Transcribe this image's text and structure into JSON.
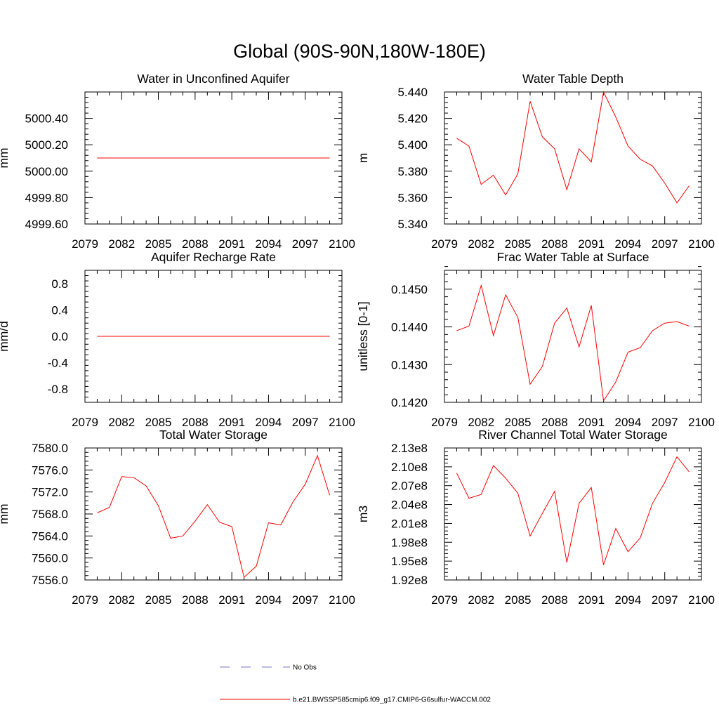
{
  "title": "Global (90S-90N,180W-180E)",
  "colors": {
    "series": "#ff0000",
    "obs": "#7777cc",
    "axes": "#000000"
  },
  "legend": {
    "obs_label": "No Obs",
    "model_label": "b.e21.BWSSP585cmip6.f09_g17.CMIP6-G6sulfur-WACCM.002"
  },
  "chart_data": [
    {
      "type": "line",
      "title": "Water in Unconfined Aquifer",
      "xlabel": "",
      "ylabel": "mm",
      "xlim": [
        2079,
        2100
      ],
      "ylim": [
        4999.6,
        5000.6
      ],
      "xticks": [
        "2079",
        "2082",
        "2085",
        "2088",
        "2091",
        "2094",
        "2097",
        "2100"
      ],
      "yticks": [
        "4999.60",
        "4999.80",
        "5000.00",
        "5000.20",
        "5000.40"
      ],
      "x": [
        2080,
        2081,
        2082,
        2083,
        2084,
        2085,
        2086,
        2087,
        2088,
        2089,
        2090,
        2091,
        2092,
        2093,
        2094,
        2095,
        2096,
        2097,
        2098,
        2099
      ],
      "series": [
        {
          "values": [
            5000.1,
            5000.1,
            5000.1,
            5000.1,
            5000.1,
            5000.1,
            5000.1,
            5000.1,
            5000.1,
            5000.1,
            5000.1,
            5000.1,
            5000.1,
            5000.1,
            5000.1,
            5000.1,
            5000.1,
            5000.1,
            5000.1,
            5000.1
          ]
        }
      ]
    },
    {
      "type": "line",
      "title": "Water Table Depth",
      "xlabel": "",
      "ylabel": "m",
      "xlim": [
        2079,
        2100
      ],
      "ylim": [
        5.34,
        5.44
      ],
      "xticks": [
        "2079",
        "2082",
        "2085",
        "2088",
        "2091",
        "2094",
        "2097",
        "2100"
      ],
      "yticks": [
        "5.340",
        "5.360",
        "5.380",
        "5.400",
        "5.420",
        "5.440"
      ],
      "x": [
        2080,
        2081,
        2082,
        2083,
        2084,
        2085,
        2086,
        2087,
        2088,
        2089,
        2090,
        2091,
        2092,
        2093,
        2094,
        2095,
        2096,
        2097,
        2098,
        2099
      ],
      "series": [
        {
          "values": [
            5.405,
            5.399,
            5.37,
            5.377,
            5.362,
            5.378,
            5.433,
            5.406,
            5.397,
            5.366,
            5.397,
            5.387,
            5.44,
            5.421,
            5.399,
            5.389,
            5.384,
            5.371,
            5.356,
            5.369
          ]
        }
      ]
    },
    {
      "type": "line",
      "title": "Aquifer Recharge Rate",
      "xlabel": "",
      "ylabel": "mm/d",
      "xlim": [
        2079,
        2100
      ],
      "ylim": [
        -1.0,
        1.0
      ],
      "xticks": [
        "2079",
        "2082",
        "2085",
        "2088",
        "2091",
        "2094",
        "2097",
        "2100"
      ],
      "yticks": [
        "-0.8",
        "-0.4",
        "0.0",
        "0.4",
        "0.8"
      ],
      "x": [
        2080,
        2081,
        2082,
        2083,
        2084,
        2085,
        2086,
        2087,
        2088,
        2089,
        2090,
        2091,
        2092,
        2093,
        2094,
        2095,
        2096,
        2097,
        2098,
        2099
      ],
      "series": [
        {
          "values": [
            0,
            0,
            0,
            0,
            0,
            0,
            0,
            0,
            0,
            0,
            0,
            0,
            0,
            0,
            0,
            0,
            0,
            0,
            0,
            0
          ]
        }
      ]
    },
    {
      "type": "line",
      "title": "Frac Water Table at Surface",
      "xlabel": "",
      "ylabel": "unitless [0-1]",
      "xlim": [
        2079,
        2100
      ],
      "ylim": [
        0.142,
        0.1455
      ],
      "xticks": [
        "2079",
        "2082",
        "2085",
        "2088",
        "2091",
        "2094",
        "2097",
        "2100"
      ],
      "yticks": [
        "0.1420",
        "0.1430",
        "0.1440",
        "0.1450"
      ],
      "x": [
        2080,
        2081,
        2082,
        2083,
        2084,
        2085,
        2086,
        2087,
        2088,
        2089,
        2090,
        2091,
        2092,
        2093,
        2094,
        2095,
        2096,
        2097,
        2098,
        2099
      ],
      "series": [
        {
          "values": [
            0.1439,
            0.14402,
            0.1451,
            0.14377,
            0.14485,
            0.14425,
            0.14248,
            0.14295,
            0.1441,
            0.1445,
            0.14347,
            0.14457,
            0.14204,
            0.14254,
            0.14333,
            0.14345,
            0.1439,
            0.1441,
            0.14414,
            0.14402
          ]
        }
      ]
    },
    {
      "type": "line",
      "title": "Total Water Storage",
      "xlabel": "",
      "ylabel": "mm",
      "xlim": [
        2079,
        2100
      ],
      "ylim": [
        7556.0,
        7580.0
      ],
      "xticks": [
        "2079",
        "2082",
        "2085",
        "2088",
        "2091",
        "2094",
        "2097",
        "2100"
      ],
      "yticks": [
        "7556.0",
        "7560.0",
        "7564.0",
        "7568.0",
        "7572.0",
        "7576.0",
        "7580.0"
      ],
      "x": [
        2080,
        2081,
        2082,
        2083,
        2084,
        2085,
        2086,
        2087,
        2088,
        2089,
        2090,
        2091,
        2092,
        2093,
        2094,
        2095,
        2096,
        2097,
        2098,
        2099
      ],
      "series": [
        {
          "values": [
            7568.2,
            7569.2,
            7574.8,
            7574.6,
            7573.1,
            7569.5,
            7563.6,
            7564.0,
            7566.7,
            7569.7,
            7566.5,
            7565.7,
            7556.5,
            7558.5,
            7566.4,
            7566.0,
            7570.2,
            7573.4,
            7578.6,
            7571.4
          ]
        }
      ]
    },
    {
      "type": "line",
      "title": "River Channel Total Water Storage",
      "xlabel": "",
      "ylabel": "m3",
      "xlim": [
        2079,
        2100
      ],
      "ylim": [
        192000000.0,
        213000000.0
      ],
      "xticks": [
        "2079",
        "2082",
        "2085",
        "2088",
        "2091",
        "2094",
        "2097",
        "2100"
      ],
      "yticks": [
        "1.92e8",
        "1.95e8",
        "1.98e8",
        "2.01e8",
        "2.04e8",
        "2.07e8",
        "2.10e8",
        "2.13e8"
      ],
      "x": [
        2080,
        2081,
        2082,
        2083,
        2084,
        2085,
        2086,
        2087,
        2088,
        2089,
        2090,
        2091,
        2092,
        2093,
        2094,
        2095,
        2096,
        2097,
        2098,
        2099
      ],
      "series": [
        {
          "values": [
            209000000.0,
            205000000.0,
            205600000.0,
            210200000.0,
            208200000.0,
            205800000.0,
            199000000.0,
            202600000.0,
            206100000.0,
            194800000.0,
            204200000.0,
            206700000.0,
            194400000.0,
            200200000.0,
            196500000.0,
            198700000.0,
            204200000.0,
            207500000.0,
            211600000.0,
            209200000.0
          ]
        }
      ]
    }
  ]
}
